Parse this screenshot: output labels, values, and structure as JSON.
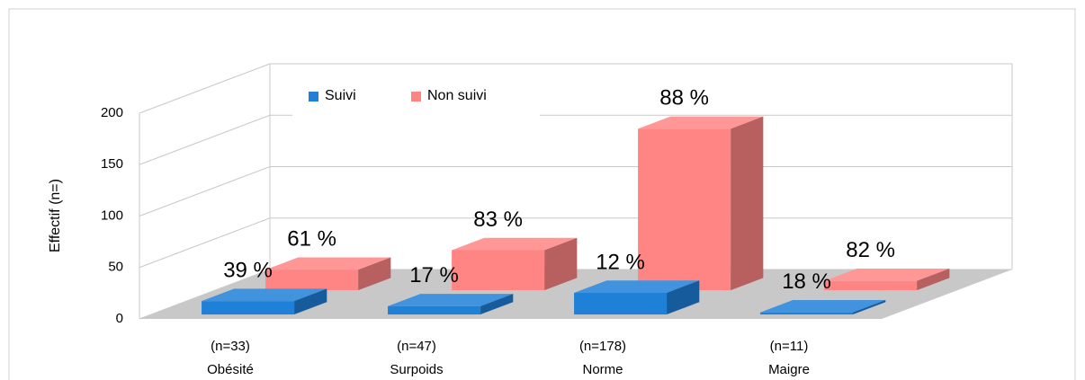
{
  "chart_data": {
    "type": "bar3d",
    "y_label": "Effectif (n=)",
    "categories": [
      "Obésité",
      "Surpoids",
      "Norme",
      "Maigre"
    ],
    "category_notes": [
      "(n=33)",
      "(n=47)",
      "(n=178)",
      "(n=11)"
    ],
    "series": [
      {
        "name": "Suivi",
        "color": "#1f80d8",
        "values": [
          13,
          8,
          21,
          2
        ],
        "percent_labels": [
          "39 %",
          "17 %",
          "12 %",
          "18 %"
        ]
      },
      {
        "name": "Non suivi",
        "color": "#ff8585",
        "values": [
          20,
          39,
          157,
          9
        ],
        "percent_labels": [
          "61 %",
          "83 %",
          "88 %",
          "82 %"
        ]
      }
    ],
    "ylim": [
      0,
      200
    ],
    "yticks": [
      0,
      50,
      100,
      150,
      200
    ],
    "grid": true,
    "legend": "top"
  }
}
